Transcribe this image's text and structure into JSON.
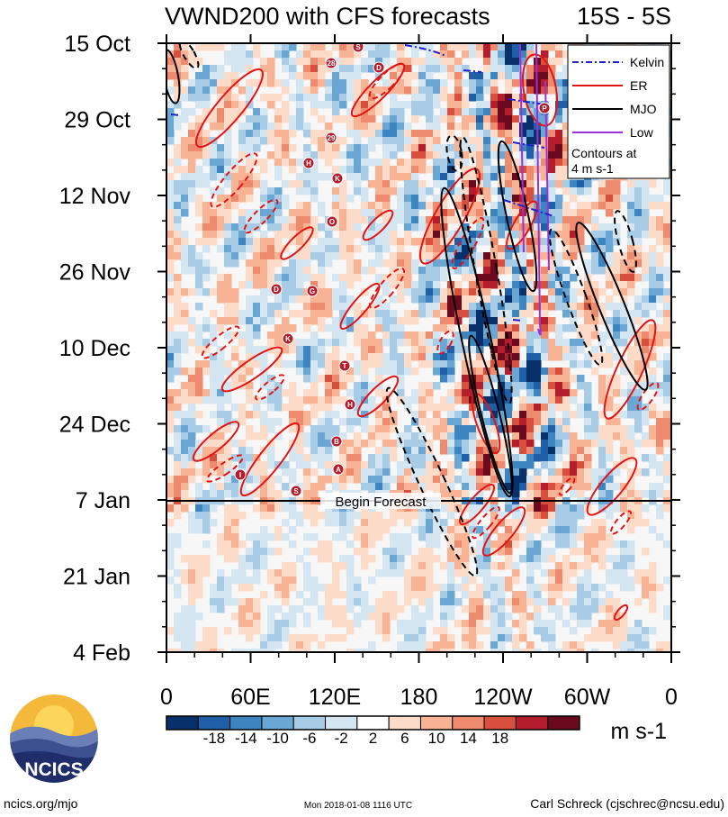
{
  "chart_data": {
    "type": "heatmap",
    "title": "VWND200 with CFS forecasts",
    "subtitle": "15S - 5S",
    "y_ticks": [
      "15 Oct",
      "29 Oct",
      "12 Nov",
      "26 Nov",
      "10 Dec",
      "24 Dec",
      "7 Jan",
      "21 Jan",
      "4 Feb"
    ],
    "x_ticks": [
      "0",
      "60E",
      "120E",
      "180",
      "120W",
      "60W",
      "0"
    ],
    "forecast_label": "Begin Forecast",
    "legend": [
      {
        "label": "Kelvin",
        "color": "#1f1fd0",
        "style": "dash-dot"
      },
      {
        "label": "ER",
        "color": "#e21414",
        "style": "solid"
      },
      {
        "label": "MJO",
        "color": "#000000",
        "style": "solid"
      },
      {
        "label": "Low",
        "color": "#9b30d9",
        "style": "solid"
      }
    ],
    "contour_note": [
      "Contours at",
      "4 m s-1"
    ],
    "colorbar": {
      "units": "m s-1",
      "ticks": [
        "-18",
        "-14",
        "-10",
        "-6",
        "-2",
        "2",
        "6",
        "10",
        "14",
        "18"
      ],
      "colors": [
        "#08306b",
        "#1f5fa8",
        "#3d85c0",
        "#6aa7d4",
        "#a9cce6",
        "#d4e6f2",
        "#ffffff",
        "#fcdcc8",
        "#f7b394",
        "#ee8a6e",
        "#d8503d",
        "#b41d2c",
        "#6b0a1e"
      ]
    },
    "storm_labels": [
      "28",
      "S",
      "D",
      "29",
      "H",
      "K",
      "O",
      "D",
      "G",
      "K",
      "T",
      "H",
      "B",
      "A",
      "I",
      "S",
      "P"
    ]
  },
  "footer": {
    "left": "ncics.org/mjo",
    "center": "Mon 2018-01-08 1116 UTC",
    "right": "Carl Schreck (cjschrec@ncsu.edu)",
    "logo_text": "NCICS"
  }
}
